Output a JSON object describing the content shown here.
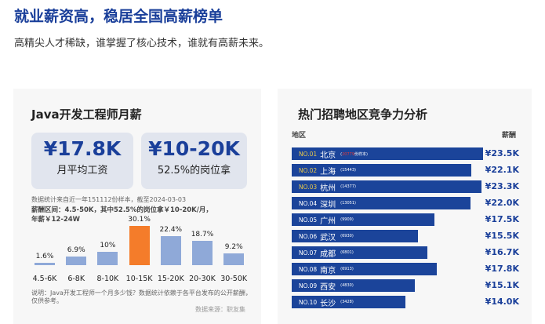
{
  "header": {
    "title": "就业薪资高，稳居全国高薪榜单",
    "subtitle": "高精尖人才稀缺，谁掌握了核心技术，谁就有高薪未来。"
  },
  "left": {
    "title": "Java开发工程师月薪",
    "box1": {
      "value": "¥17.8K",
      "label": "月平均工资"
    },
    "box2": {
      "value": "¥10-20K",
      "label": "52.5%的岗位拿"
    },
    "stat_note": "数据统计来自近一年151112份样本，截至2024-03-03",
    "range_text": "薪酬区间：4.5-50K，其中52.5%的岗位拿￥10-20K/月，",
    "annual_text": "年薪￥12-24W",
    "explain": "说明：Java开发工程师一个月多少钱？数据统计依赖于各平台发布的公开薪酬，仅供参考。",
    "source": "数据来源：职友集"
  },
  "chart_data": {
    "type": "bar",
    "categories": [
      "4.5-6K",
      "6-8K",
      "8-10K",
      "10-15K",
      "15-20K",
      "20-30K",
      "30-50K"
    ],
    "values": [
      1.6,
      6.9,
      10,
      30.1,
      22.4,
      18.7,
      9.2
    ],
    "labels": [
      "1.6%",
      "6.9%",
      "10%",
      "30.1%",
      "22.4%",
      "18.7%",
      "9.2%"
    ],
    "highlight_index": 3,
    "colors": {
      "bar": "#8fa9d8",
      "highlight": "#f47c2a"
    }
  },
  "right": {
    "title": "热门招聘地区竞争力分析",
    "col_region": "地区",
    "col_salary": "薪酬",
    "rows": [
      {
        "no": "NO.01",
        "city": "北京",
        "count": "20779",
        "suffix": "份样本",
        "salary": "¥23.5K",
        "value": 23.5
      },
      {
        "no": "NO.02",
        "city": "上海",
        "count": "15443",
        "salary": "¥22.1K",
        "value": 22.1
      },
      {
        "no": "NO.03",
        "city": "杭州",
        "count": "14377",
        "salary": "¥23.3K",
        "value": 23.3
      },
      {
        "no": "NO.04",
        "city": "深圳",
        "count": "13051",
        "salary": "¥22.0K",
        "value": 22.0
      },
      {
        "no": "NO.05",
        "city": "广州",
        "count": "9909",
        "salary": "¥17.5K",
        "value": 17.5
      },
      {
        "no": "NO.06",
        "city": "武汉",
        "count": "6930",
        "salary": "¥15.5K",
        "value": 15.5
      },
      {
        "no": "NO.07",
        "city": "成都",
        "count": "6801",
        "salary": "¥16.7K",
        "value": 16.7
      },
      {
        "no": "NO.08",
        "city": "南京",
        "count": "6913",
        "salary": "¥17.8K",
        "value": 17.8
      },
      {
        "no": "NO.09",
        "city": "西安",
        "count": "4830",
        "salary": "¥15.1K",
        "value": 15.1
      },
      {
        "no": "NO.10",
        "city": "长沙",
        "count": "3428",
        "salary": "¥14.0K",
        "value": 14.0
      }
    ],
    "colors": {
      "bar": "#1b449a",
      "top3_no": "#e8c84a",
      "count_highlight": "#e53935"
    }
  }
}
